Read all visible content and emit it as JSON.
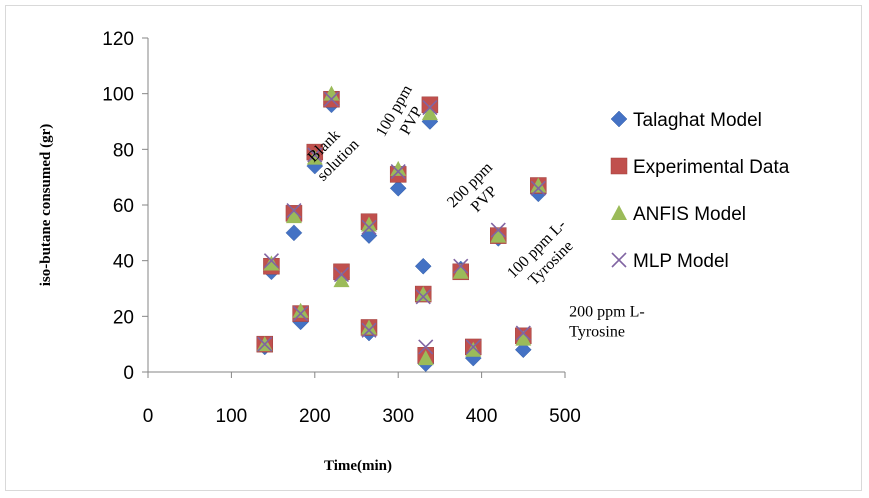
{
  "chart_data": {
    "type": "scatter",
    "title": "",
    "xlabel": "Time(min)",
    "ylabel": "iso-butane consumed (gr)",
    "xlim": [
      0,
      500
    ],
    "ylim": [
      0,
      120
    ],
    "x_ticks": [
      "0",
      "100",
      "200",
      "300",
      "400",
      "500"
    ],
    "y_ticks": [
      "0",
      "20",
      "40",
      "60",
      "80",
      "100",
      "120"
    ],
    "grid": false,
    "legend_position": "right",
    "series": [
      {
        "name": "Talaghat Model",
        "marker": "diamond",
        "color": "#4472c4",
        "points": [
          [
            140,
            9
          ],
          [
            148,
            36
          ],
          [
            175,
            50
          ],
          [
            183,
            18
          ],
          [
            200,
            74
          ],
          [
            220,
            96
          ],
          [
            232,
            34
          ],
          [
            265,
            14
          ],
          [
            265,
            49
          ],
          [
            300,
            66
          ],
          [
            330,
            38
          ],
          [
            333,
            3
          ],
          [
            338,
            90
          ],
          [
            375,
            37
          ],
          [
            390,
            5
          ],
          [
            420,
            48
          ],
          [
            450,
            8
          ],
          [
            468,
            64
          ]
        ]
      },
      {
        "name": "Experimental Data",
        "marker": "square",
        "color": "#c0504d",
        "points": [
          [
            140,
            10
          ],
          [
            148,
            38
          ],
          [
            175,
            57
          ],
          [
            183,
            21
          ],
          [
            200,
            79
          ],
          [
            220,
            98
          ],
          [
            232,
            36
          ],
          [
            265,
            16
          ],
          [
            265,
            54
          ],
          [
            300,
            71
          ],
          [
            330,
            28
          ],
          [
            333,
            6
          ],
          [
            338,
            96
          ],
          [
            375,
            36
          ],
          [
            390,
            9
          ],
          [
            420,
            49
          ],
          [
            450,
            13
          ],
          [
            468,
            67
          ]
        ]
      },
      {
        "name": "ANFIS Model",
        "marker": "triangle",
        "color": "#9bbb59",
        "points": [
          [
            140,
            10
          ],
          [
            148,
            39
          ],
          [
            175,
            56
          ],
          [
            183,
            22
          ],
          [
            200,
            77
          ],
          [
            220,
            100
          ],
          [
            232,
            33
          ],
          [
            265,
            16
          ],
          [
            265,
            53
          ],
          [
            300,
            73
          ],
          [
            330,
            28
          ],
          [
            333,
            5
          ],
          [
            338,
            93
          ],
          [
            375,
            36
          ],
          [
            390,
            8
          ],
          [
            420,
            49
          ],
          [
            450,
            12
          ],
          [
            468,
            67
          ]
        ]
      },
      {
        "name": "MLP Model",
        "marker": "x",
        "color": "#8064a2",
        "points": [
          [
            140,
            10
          ],
          [
            148,
            40
          ],
          [
            175,
            58
          ],
          [
            183,
            21
          ],
          [
            200,
            78
          ],
          [
            220,
            98
          ],
          [
            232,
            35
          ],
          [
            265,
            15
          ],
          [
            265,
            52
          ],
          [
            300,
            72
          ],
          [
            330,
            27
          ],
          [
            333,
            9
          ],
          [
            338,
            95
          ],
          [
            375,
            38
          ],
          [
            390,
            9
          ],
          [
            420,
            51
          ],
          [
            450,
            14
          ],
          [
            468,
            66
          ]
        ]
      }
    ],
    "annotations": [
      {
        "text": "Blank solution",
        "lines": [
          "Blank",
          "solution"
        ]
      },
      {
        "text": "100 ppm PVP",
        "lines": [
          "100 ppm",
          "PVP"
        ]
      },
      {
        "text": "200 ppm PVP",
        "lines": [
          "200 ppm",
          "PVP"
        ]
      },
      {
        "text": "100 ppm L-Tyrosine",
        "lines": [
          "100 ppm L-",
          "Tyrosine"
        ]
      },
      {
        "text": "200 ppm L-Tyrosine",
        "lines": [
          "200 ppm L-",
          "Tyrosine"
        ]
      }
    ]
  }
}
